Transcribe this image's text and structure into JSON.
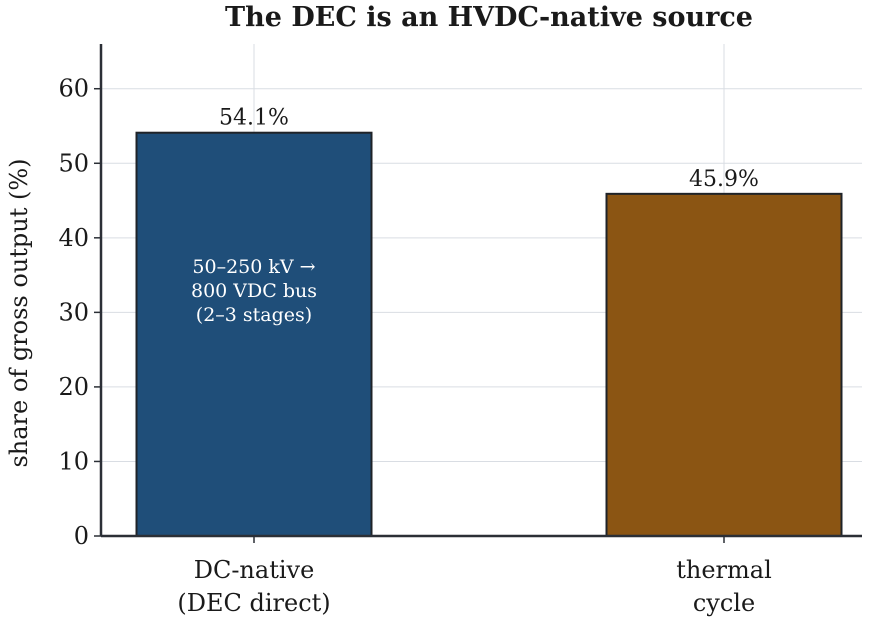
{
  "chart_data": {
    "type": "bar",
    "title": "The DEC is an HVDC-native source",
    "ylabel": "share of gross output (%)",
    "xlabel": "",
    "ylim": [
      0,
      66
    ],
    "yticks": [
      0,
      10,
      20,
      30,
      40,
      50,
      60
    ],
    "grid": true,
    "categories": [
      {
        "lines": [
          "DC-native",
          "(DEC direct)"
        ]
      },
      {
        "lines": [
          "thermal",
          "cycle"
        ]
      }
    ],
    "values": [
      54.1,
      45.9
    ],
    "value_labels": [
      "54.1%",
      "45.9%"
    ],
    "colors": [
      "#1f4e79",
      "#8b5513"
    ],
    "annotations": [
      {
        "bar_index": 0,
        "y": 33,
        "lines": [
          "50–250 kV →",
          "800 VDC bus",
          "(2–3 stages)"
        ]
      }
    ]
  }
}
